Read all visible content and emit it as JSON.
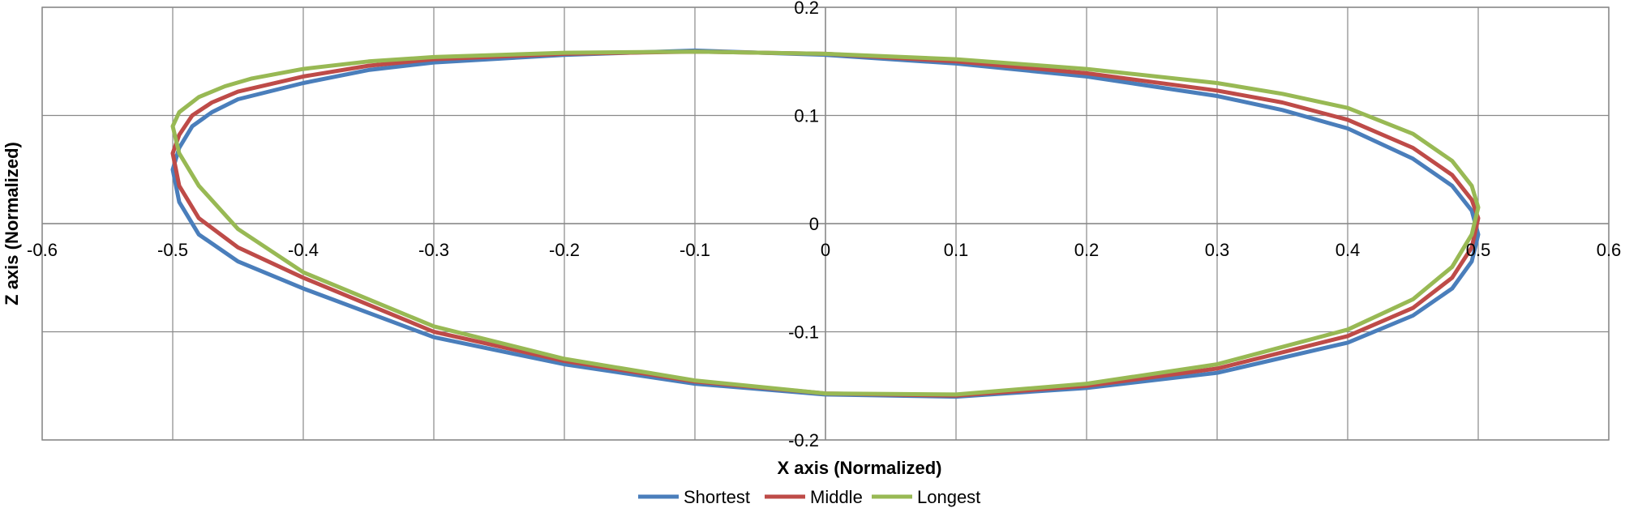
{
  "chart_data": {
    "type": "scatter",
    "title": "",
    "xlabel": "X axis (Normalized)",
    "ylabel": "Z axis (Normalized)",
    "xlim": [
      -0.6,
      0.6
    ],
    "ylim": [
      -0.2,
      0.2
    ],
    "xticks": [
      -0.6,
      -0.5,
      -0.4,
      -0.3,
      -0.2,
      -0.1,
      0,
      0.1,
      0.2,
      0.3,
      0.4,
      0.5,
      0.6
    ],
    "yticks": [
      -0.2,
      -0.1,
      0,
      0.1,
      0.2
    ],
    "xtick_labels": [
      "-0.6",
      "-0.5",
      "-0.4",
      "-0.3",
      "-0.2",
      "-0.1",
      "0",
      "0.1",
      "0.2",
      "0.3",
      "0.4",
      "0.5",
      "0.6"
    ],
    "ytick_labels": [
      "-0.2",
      "-0.1",
      "0",
      "0.1",
      "0.2"
    ],
    "grid": true,
    "legend_position": "bottom",
    "series": [
      {
        "name": "Shortest",
        "color": "#4a7ebb",
        "points": [
          [
            -0.5,
            0.05
          ],
          [
            -0.495,
            0.07
          ],
          [
            -0.485,
            0.09
          ],
          [
            -0.47,
            0.103
          ],
          [
            -0.45,
            0.115
          ],
          [
            -0.4,
            0.13
          ],
          [
            -0.35,
            0.142
          ],
          [
            -0.3,
            0.149
          ],
          [
            -0.2,
            0.156
          ],
          [
            -0.1,
            0.16
          ],
          [
            0,
            0.156
          ],
          [
            0.1,
            0.148
          ],
          [
            0.2,
            0.136
          ],
          [
            0.3,
            0.118
          ],
          [
            0.35,
            0.105
          ],
          [
            0.4,
            0.088
          ],
          [
            0.45,
            0.06
          ],
          [
            0.48,
            0.035
          ],
          [
            0.495,
            0.012
          ],
          [
            0.5,
            -0.01
          ],
          [
            0.495,
            -0.035
          ],
          [
            0.48,
            -0.06
          ],
          [
            0.45,
            -0.085
          ],
          [
            0.4,
            -0.11
          ],
          [
            0.3,
            -0.138
          ],
          [
            0.2,
            -0.152
          ],
          [
            0.1,
            -0.16
          ],
          [
            0,
            -0.158
          ],
          [
            -0.1,
            -0.148
          ],
          [
            -0.2,
            -0.13
          ],
          [
            -0.3,
            -0.105
          ],
          [
            -0.4,
            -0.06
          ],
          [
            -0.45,
            -0.035
          ],
          [
            -0.48,
            -0.01
          ],
          [
            -0.495,
            0.02
          ],
          [
            -0.5,
            0.05
          ]
        ]
      },
      {
        "name": "Middle",
        "color": "#be4b48",
        "points": [
          [
            -0.5,
            0.065
          ],
          [
            -0.495,
            0.082
          ],
          [
            -0.485,
            0.1
          ],
          [
            -0.47,
            0.112
          ],
          [
            -0.45,
            0.122
          ],
          [
            -0.4,
            0.136
          ],
          [
            -0.35,
            0.146
          ],
          [
            -0.3,
            0.152
          ],
          [
            -0.2,
            0.157
          ],
          [
            -0.1,
            0.159
          ],
          [
            0,
            0.157
          ],
          [
            0.1,
            0.15
          ],
          [
            0.2,
            0.139
          ],
          [
            0.3,
            0.123
          ],
          [
            0.35,
            0.112
          ],
          [
            0.4,
            0.096
          ],
          [
            0.45,
            0.07
          ],
          [
            0.48,
            0.045
          ],
          [
            0.495,
            0.022
          ],
          [
            0.5,
            0.005
          ],
          [
            0.495,
            -0.022
          ],
          [
            0.48,
            -0.05
          ],
          [
            0.45,
            -0.078
          ],
          [
            0.4,
            -0.104
          ],
          [
            0.3,
            -0.134
          ],
          [
            0.2,
            -0.15
          ],
          [
            0.1,
            -0.159
          ],
          [
            0,
            -0.157
          ],
          [
            -0.1,
            -0.146
          ],
          [
            -0.2,
            -0.127
          ],
          [
            -0.3,
            -0.1
          ],
          [
            -0.4,
            -0.05
          ],
          [
            -0.45,
            -0.022
          ],
          [
            -0.48,
            0.005
          ],
          [
            -0.495,
            0.035
          ],
          [
            -0.5,
            0.065
          ]
        ]
      },
      {
        "name": "Longest",
        "color": "#98b954",
        "points": [
          [
            -0.5,
            0.09
          ],
          [
            -0.495,
            0.103
          ],
          [
            -0.48,
            0.117
          ],
          [
            -0.46,
            0.127
          ],
          [
            -0.44,
            0.134
          ],
          [
            -0.4,
            0.143
          ],
          [
            -0.35,
            0.15
          ],
          [
            -0.3,
            0.154
          ],
          [
            -0.2,
            0.158
          ],
          [
            -0.1,
            0.159
          ],
          [
            0,
            0.157
          ],
          [
            0.1,
            0.152
          ],
          [
            0.2,
            0.143
          ],
          [
            0.3,
            0.13
          ],
          [
            0.35,
            0.12
          ],
          [
            0.4,
            0.107
          ],
          [
            0.45,
            0.083
          ],
          [
            0.48,
            0.058
          ],
          [
            0.495,
            0.035
          ],
          [
            0.5,
            0.015
          ],
          [
            0.495,
            -0.01
          ],
          [
            0.48,
            -0.04
          ],
          [
            0.45,
            -0.07
          ],
          [
            0.4,
            -0.098
          ],
          [
            0.3,
            -0.13
          ],
          [
            0.2,
            -0.148
          ],
          [
            0.1,
            -0.158
          ],
          [
            0,
            -0.157
          ],
          [
            -0.1,
            -0.145
          ],
          [
            -0.2,
            -0.125
          ],
          [
            -0.3,
            -0.095
          ],
          [
            -0.4,
            -0.045
          ],
          [
            -0.45,
            -0.005
          ],
          [
            -0.48,
            0.035
          ],
          [
            -0.495,
            0.065
          ],
          [
            -0.5,
            0.09
          ]
        ]
      }
    ]
  }
}
